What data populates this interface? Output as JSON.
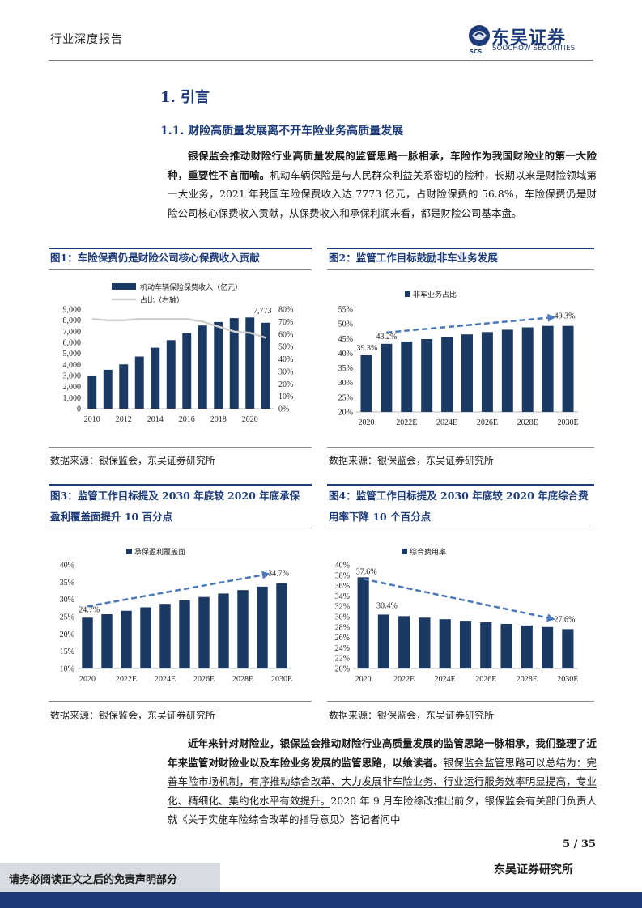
{
  "header": {
    "report_type": "行业深度报告",
    "logo_cn": "东吴证券",
    "logo_en": "SOOCHOW SECURITIES",
    "logo_mark": "SCS"
  },
  "section": {
    "heading": "1.  引言",
    "subheading": "1.1.   财险高质量发展离不开车险业务高质量发展"
  },
  "paragraph1": {
    "bold": "银保监会推动财险行业高质量发展的监管思路一脉相承，车险作为我国财险业的第一大险种，重要性不言而喻。",
    "normal": "机动车辆保险是与人民群众利益关系密切的险种，长期以来是财险领域第一大业务，2021 年我国车险保费收入达 7773 亿元，占财险保费的 56.8%，车险保费仍是财险公司核心保费收入贡献，从保费收入和承保利润来看，都是财险公司基本盘。"
  },
  "figures": [
    {
      "title": "图1：车险保费仍是财险公司核心保费收入贡献",
      "source": "数据来源：银保监会，东吴证券研究所"
    },
    {
      "title": "图2：监管工作目标鼓励非车业务发展",
      "source": "数据来源：银保监会，东吴证券研究所"
    },
    {
      "title": "图3：监管工作目标提及 2030 年底较 2020 年底承保盈利覆盖面提升 10 百分点",
      "source": "数据来源：银保监会，东吴证券研究所"
    },
    {
      "title": "图4：监管工作目标提及 2030 年底较 2020 年底综合费用率下降 10 个百分点",
      "source": "数据来源：银保监会，东吴证券研究所"
    }
  ],
  "chart_data": [
    {
      "type": "bar",
      "title": "",
      "categories": [
        "2010",
        "2011",
        "2012",
        "2013",
        "2014",
        "2015",
        "2016",
        "2017",
        "2018",
        "2019",
        "2020",
        "2021"
      ],
      "x_tick_labels": [
        "2010",
        "2012",
        "2014",
        "2016",
        "2018",
        "2020"
      ],
      "series": [
        {
          "name": "机动车辆保险保费收入（亿元）",
          "type": "bar",
          "color": "#1b3a63",
          "values": [
            3004,
            3518,
            4005,
            4720,
            5516,
            6199,
            6834,
            7521,
            7834,
            8188,
            8245,
            7773
          ]
        },
        {
          "name": "占比（右轴）",
          "type": "line",
          "axis": "right",
          "color": "#cfcfcf",
          "values": [
            72,
            71,
            71,
            72,
            72,
            72,
            72,
            70,
            66,
            62,
            61,
            57
          ]
        }
      ],
      "ylim": [
        0,
        9000
      ],
      "yticks": [
        "0",
        "1,000",
        "2,000",
        "3,000",
        "4,000",
        "5,000",
        "6,000",
        "7,000",
        "8,000",
        "9,000"
      ],
      "y2lim": [
        0,
        80
      ],
      "y2ticks": [
        "0%",
        "10%",
        "20%",
        "30%",
        "40%",
        "50%",
        "60%",
        "70%",
        "80%"
      ],
      "data_label": "7,773",
      "legend": "top-left"
    },
    {
      "type": "bar",
      "categories": [
        "2020",
        "2021E",
        "2022E",
        "2023E",
        "2024E",
        "2025E",
        "2026E",
        "2027E",
        "2028E",
        "2029E",
        "2030E"
      ],
      "x_tick_labels": [
        "2020",
        "2022E",
        "2024E",
        "2026E",
        "2028E",
        "2030E"
      ],
      "series": [
        {
          "name": "非车业务占比",
          "color": "#1b3a63",
          "values": [
            39.3,
            43.2,
            44.0,
            44.8,
            45.6,
            46.4,
            47.2,
            48.0,
            48.8,
            49.3,
            49.3
          ]
        }
      ],
      "ylim": [
        20,
        55
      ],
      "yticks": [
        "20%",
        "25%",
        "30%",
        "35%",
        "40%",
        "45%",
        "50%",
        "55%"
      ],
      "labels": [
        "39.3%",
        "43.2%",
        "49.3%"
      ],
      "trend": "up",
      "legend": "top-left"
    },
    {
      "type": "bar",
      "categories": [
        "2020",
        "2021E",
        "2022E",
        "2023E",
        "2024E",
        "2025E",
        "2026E",
        "2027E",
        "2028E",
        "2029E",
        "2030E"
      ],
      "x_tick_labels": [
        "2020",
        "2022E",
        "2024E",
        "2026E",
        "2028E",
        "2030E"
      ],
      "series": [
        {
          "name": "承保盈利覆盖面",
          "color": "#1b3a63",
          "values": [
            24.7,
            25.7,
            26.7,
            27.7,
            28.7,
            29.7,
            30.7,
            31.7,
            32.7,
            33.7,
            34.7
          ]
        }
      ],
      "ylim": [
        10,
        40
      ],
      "yticks": [
        "10%",
        "15%",
        "20%",
        "25%",
        "30%",
        "35%",
        "40%"
      ],
      "labels": [
        "24.7%",
        "34.7%"
      ],
      "trend": "up",
      "legend": "top-left"
    },
    {
      "type": "bar",
      "categories": [
        "2020",
        "2021E",
        "2022E",
        "2023E",
        "2024E",
        "2025E",
        "2026E",
        "2027E",
        "2028E",
        "2029E",
        "2030E"
      ],
      "x_tick_labels": [
        "2020",
        "2022E",
        "2024E",
        "2026E",
        "2028E",
        "2030E"
      ],
      "series": [
        {
          "name": "综合费用率",
          "color": "#1b3a63",
          "values": [
            37.6,
            30.4,
            30.1,
            29.8,
            29.5,
            29.2,
            28.9,
            28.6,
            28.3,
            28.0,
            27.6
          ]
        }
      ],
      "ylim": [
        20,
        40
      ],
      "yticks": [
        "20%",
        "22%",
        "24%",
        "26%",
        "28%",
        "30%",
        "32%",
        "34%",
        "36%",
        "38%",
        "40%"
      ],
      "labels": [
        "37.6%",
        "30.4%",
        "27.6%"
      ],
      "trend": "down",
      "legend": "top-left"
    }
  ],
  "paragraph2": {
    "bold": "近年来针对财险业，银保监会推动财险行业高质量发展的监管思路一脉相承，我们整理了近年来监管对财险业以及车险业务发展的监管思路，以飨读者。",
    "underlined": "银保监会监管思路可以总结为：完善车险市场机制，有序推动综合改革、大力发展非车险业务、行业运行服务效率明显提高，专业化、精细化、集约化水平有效提升。",
    "normal": "2020 年 9 月车险综改推出前夕，银保监会有关部门负责人就《关于实施车险综合改革的指导意见》答记者问中"
  },
  "footer": {
    "page": "5 / 35",
    "disclaimer": "请务必阅读正文之后的免责声明部分",
    "org": "东吴证券研究所"
  }
}
